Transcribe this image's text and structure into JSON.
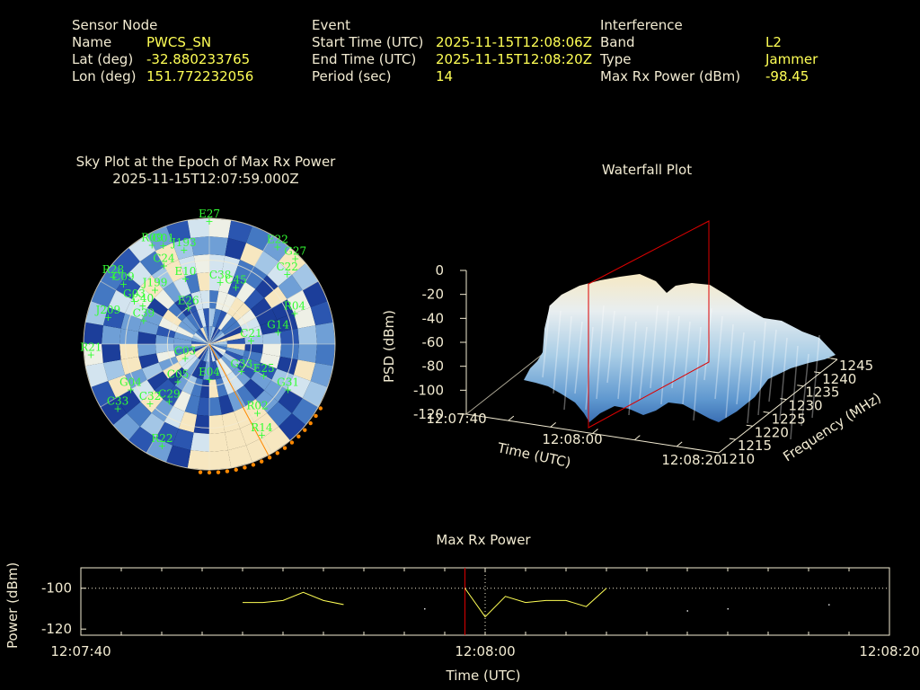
{
  "header": {
    "sensor": {
      "title": "Sensor Node",
      "name_label": "Name",
      "name_value": "PWCS_SN",
      "lat_label": "Lat (deg)",
      "lat_value": "-32.880233765",
      "lon_label": "Lon (deg)",
      "lon_value": "151.772232056"
    },
    "event": {
      "title": "Event",
      "start_label": "Start Time (UTC)",
      "start_value": "2025-11-15T12:08:06Z",
      "end_label": "End Time (UTC)",
      "end_value": "2025-11-15T12:08:20Z",
      "period_label": "Period (sec)",
      "period_value": "14"
    },
    "interference": {
      "title": "Interference",
      "band_label": "Band",
      "band_value": "L2",
      "type_label": "Type",
      "type_value": "Jammer",
      "maxrx_label": "Max Rx Power (dBm)",
      "maxrx_value": "-98.45"
    }
  },
  "colors": {
    "label": "#f2ebd2",
    "value": "#ffff55",
    "satellite": "#33ff33",
    "marker_line": "#dd0000",
    "power_line": "#ffff55",
    "orange": "#ff8800"
  },
  "chart_data": [
    {
      "type": "scatter",
      "title": "Sky Plot at the Epoch of Max Rx Power",
      "subtitle": "2025-11-15T12:07:59.000Z",
      "satellites": [
        {
          "id": "E27",
          "az": 0,
          "el": 2
        },
        {
          "id": "R09",
          "az": 330,
          "el": 8
        },
        {
          "id": "G01",
          "az": 335,
          "el": 12
        },
        {
          "id": "J193",
          "az": 345,
          "el": 20
        },
        {
          "id": "E22",
          "az": 35,
          "el": 5
        },
        {
          "id": "G27",
          "az": 45,
          "el": 3
        },
        {
          "id": "C22",
          "az": 48,
          "el": 15
        },
        {
          "id": "R28",
          "az": 305,
          "el": 6
        },
        {
          "id": "C09",
          "az": 305,
          "el": 15
        },
        {
          "id": "C24",
          "az": 330,
          "el": 25
        },
        {
          "id": "G03",
          "az": 300,
          "el": 28
        },
        {
          "id": "J199",
          "az": 315,
          "el": 35
        },
        {
          "id": "C40",
          "az": 300,
          "el": 35
        },
        {
          "id": "E10",
          "az": 340,
          "el": 40
        },
        {
          "id": "C38",
          "az": 10,
          "el": 45
        },
        {
          "id": "C45",
          "az": 25,
          "el": 45
        },
        {
          "id": "J209",
          "az": 285,
          "el": 15
        },
        {
          "id": "C39",
          "az": 290,
          "el": 40
        },
        {
          "id": "R04",
          "az": 70,
          "el": 25
        },
        {
          "id": "G14",
          "az": 80,
          "el": 40
        },
        {
          "id": "C21",
          "az": 85,
          "el": 60
        },
        {
          "id": "E26",
          "az": 330,
          "el": 60
        },
        {
          "id": "R21",
          "az": 265,
          "el": 5
        },
        {
          "id": "C03",
          "az": 240,
          "el": 70
        },
        {
          "id": "C05",
          "az": 220,
          "el": 55
        },
        {
          "id": "E04",
          "az": 180,
          "el": 65
        },
        {
          "id": "G33",
          "az": 130,
          "el": 60
        },
        {
          "id": "E25",
          "az": 120,
          "el": 45
        },
        {
          "id": "G31",
          "az": 120,
          "el": 25
        },
        {
          "id": "R02",
          "az": 145,
          "el": 30
        },
        {
          "id": "R14",
          "az": 150,
          "el": 15
        },
        {
          "id": "C32",
          "az": 225,
          "el": 30
        },
        {
          "id": "C29",
          "az": 215,
          "el": 40
        },
        {
          "id": "C33",
          "az": 235,
          "el": 10
        },
        {
          "id": "R22",
          "az": 205,
          "el": 10
        },
        {
          "id": "G04",
          "az": 240,
          "el": 25
        }
      ]
    },
    {
      "type": "surface",
      "title": "Waterfall Plot",
      "zlabel": "PSD (dBm)",
      "xlabel": "Time (UTC)",
      "ylabel": "Frequency (MHz)",
      "zticks": [
        "0",
        "-20",
        "-40",
        "-60",
        "-80",
        "-100",
        "-120"
      ],
      "zlim": [
        -120,
        0
      ],
      "xticks": [
        "12:07:40",
        "12:08:00",
        "12:08:20"
      ],
      "yticks": [
        "1210",
        "1215",
        "1220",
        "1225",
        "1230",
        "1235",
        "1240",
        "1245"
      ],
      "peak_psd": -20,
      "marker_time": "12:08:00"
    },
    {
      "type": "line",
      "title": "Max Rx Power",
      "ylabel": "Power (dBm)",
      "xlabel": "Time (UTC)",
      "yticks": [
        "-100",
        "-120"
      ],
      "ylim": [
        -123,
        -90
      ],
      "xticks": [
        "12:07:40",
        "12:08:00",
        "12:08:20"
      ],
      "xlim_seconds": [
        0,
        40
      ],
      "series": [
        {
          "values": [
            [
              8,
              -107
            ],
            [
              9,
              -107
            ],
            [
              10,
              -106
            ],
            [
              11,
              -102
            ],
            [
              12,
              -106
            ],
            [
              13,
              -108
            ]
          ]
        },
        {
          "values": [
            [
              19,
              -100
            ],
            [
              20,
              -114
            ],
            [
              21,
              -104
            ],
            [
              22,
              -107
            ],
            [
              23,
              -106
            ],
            [
              24,
              -106
            ],
            [
              25,
              -109
            ],
            [
              26,
              -100
            ]
          ]
        }
      ],
      "isolated_points": [
        [
          17,
          -110
        ],
        [
          30,
          -111
        ],
        [
          32,
          -110
        ],
        [
          37,
          -108
        ]
      ],
      "max_marker_second": 19,
      "current_second": 20
    }
  ]
}
